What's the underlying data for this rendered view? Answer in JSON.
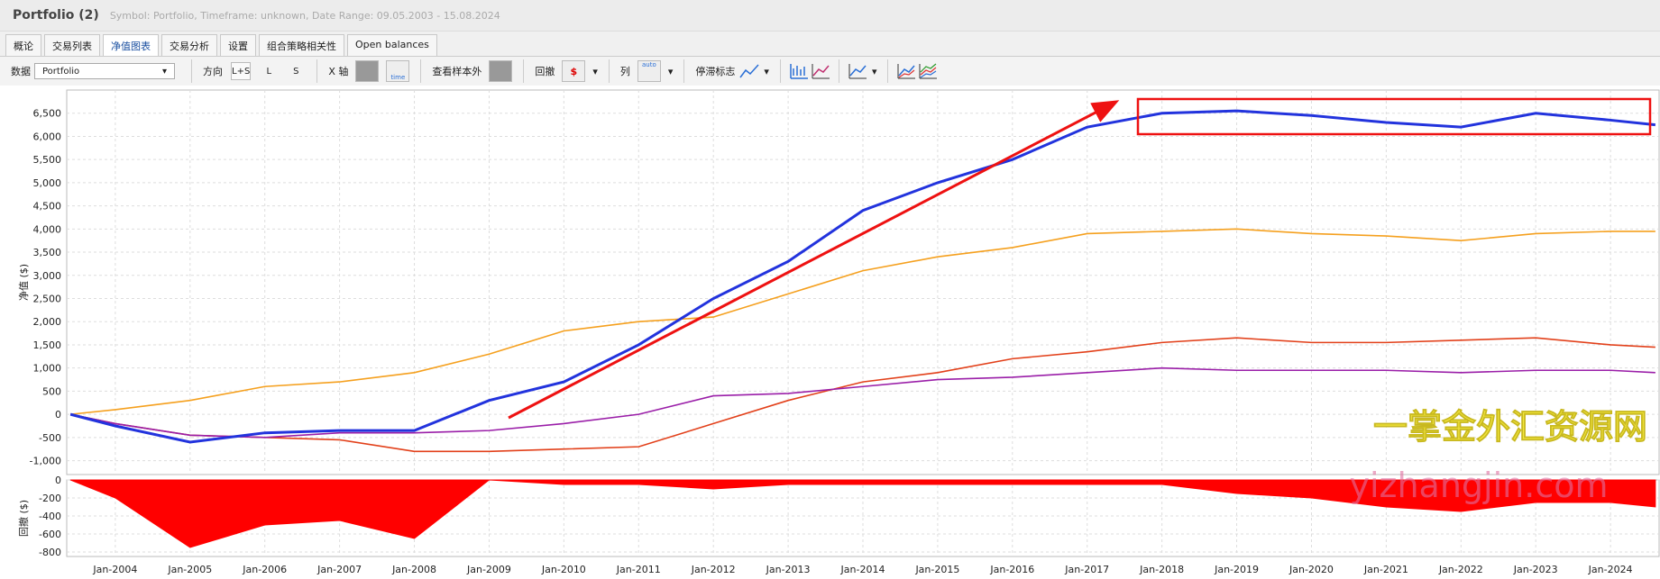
{
  "header": {
    "title": "Portfolio (2)",
    "subtitle": "Symbol: Portfolio, Timeframe: unknown, Date Range: 09.05.2003 - 15.08.2024"
  },
  "tabs": [
    "概论",
    "交易列表",
    "净值图表",
    "交易分析",
    "设置",
    "组合策略相关性",
    "Open balances"
  ],
  "toolbar": {
    "data_label": "数据",
    "data_select": "Portfolio",
    "direction_label": "方向",
    "direction_options": [
      "L+S",
      "L",
      "S"
    ],
    "x_axis_label": "X 轴",
    "x_axis_icon": "time",
    "out_of_sample_label": "查看样本外",
    "drawdown_label": "回撤",
    "columns_label": "列",
    "columns_icon": "auto",
    "stagnation_label": "停滞标志"
  },
  "watermark": [
    "一掌金外汇资源网",
    "yizhangjin.com"
  ],
  "chart_data": [
    {
      "type": "line",
      "ylabel": "净值 ($)",
      "x": [
        2003.4,
        2004,
        2005,
        2006,
        2007,
        2008,
        2009,
        2010,
        2011,
        2012,
        2013,
        2014,
        2015,
        2016,
        2017,
        2018,
        2019,
        2020,
        2021,
        2022,
        2023,
        2024,
        2024.6
      ],
      "xlim": [
        2003.35,
        2024.65
      ],
      "ylim": [
        -1300,
        7000
      ],
      "yticks": [
        {
          "value": -1000,
          "label": "-1,000"
        },
        -500,
        0,
        500,
        {
          "value": 1000,
          "label": "1,000"
        },
        {
          "value": 1500,
          "label": "1,500"
        },
        {
          "value": 2000,
          "label": "2,000"
        },
        {
          "value": 2500,
          "label": "2,500"
        },
        {
          "value": 3000,
          "label": "3,000"
        },
        {
          "value": 3500,
          "label": "3,500"
        },
        {
          "value": 4000,
          "label": "4,000"
        },
        {
          "value": 4500,
          "label": "4,500"
        },
        {
          "value": 5000,
          "label": "5,000"
        },
        {
          "value": 5500,
          "label": "5,500"
        },
        {
          "value": 6000,
          "label": "6,000"
        },
        {
          "value": 6500,
          "label": "6,500"
        }
      ],
      "grid": true,
      "series": [
        {
          "color": "#f5a01e",
          "values": [
            0,
            100,
            300,
            600,
            700,
            900,
            1300,
            1800,
            2000,
            2100,
            2600,
            3100,
            3400,
            3600,
            3900,
            3950,
            4000,
            3900,
            3850,
            3750,
            3900,
            3950,
            3950
          ]
        },
        {
          "color": "#e2401a",
          "values": [
            0,
            -200,
            -450,
            -500,
            -550,
            -800,
            -800,
            -750,
            -700,
            -200,
            300,
            700,
            900,
            1200,
            1350,
            1550,
            1650,
            1550,
            1550,
            1600,
            1650,
            1500,
            1450
          ]
        },
        {
          "color": "#9a1ea8",
          "values": [
            0,
            -200,
            -450,
            -500,
            -400,
            -400,
            -350,
            -200,
            0,
            400,
            450,
            600,
            750,
            800,
            900,
            1000,
            950,
            950,
            950,
            900,
            950,
            950,
            900
          ]
        },
        {
          "color": "#2233dd",
          "values": [
            0,
            -250,
            -600,
            -400,
            -350,
            -350,
            300,
            700,
            1500,
            2500,
            3300,
            4400,
            5000,
            5500,
            6200,
            6500,
            6550,
            6450,
            6300,
            6200,
            6500,
            6350,
            6250
          ]
        }
      ]
    },
    {
      "type": "area",
      "ylabel": "回撤 ($)",
      "color": "#ff0000",
      "x": [
        2003.4,
        2004,
        2005,
        2006,
        2007,
        2008,
        2009,
        2010,
        2011,
        2012,
        2013,
        2014,
        2015,
        2016,
        2017,
        2018,
        2019,
        2020,
        2021,
        2022,
        2023,
        2024,
        2024.6
      ],
      "values": [
        0,
        -200,
        -750,
        -500,
        -450,
        -650,
        0,
        -50,
        -50,
        -100,
        -50,
        -50,
        -50,
        -50,
        -50,
        -50,
        -150,
        -200,
        -300,
        -350,
        -250,
        -250,
        -300
      ],
      "xlim": [
        2003.35,
        2024.65
      ],
      "ylim": [
        -850,
        0
      ],
      "yticks": [
        -800,
        -600,
        -400,
        -200,
        0
      ],
      "xticks": [
        {
          "value": 2004,
          "label": "Jan-2004"
        },
        {
          "value": 2005,
          "label": "Jan-2005"
        },
        {
          "value": 2006,
          "label": "Jan-2006"
        },
        {
          "value": 2007,
          "label": "Jan-2007"
        },
        {
          "value": 2008,
          "label": "Jan-2008"
        },
        {
          "value": 2009,
          "label": "Jan-2009"
        },
        {
          "value": 2010,
          "label": "Jan-2010"
        },
        {
          "value": 2011,
          "label": "Jan-2011"
        },
        {
          "value": 2012,
          "label": "Jan-2012"
        },
        {
          "value": 2013,
          "label": "Jan-2013"
        },
        {
          "value": 2014,
          "label": "Jan-2014"
        },
        {
          "value": 2015,
          "label": "Jan-2015"
        },
        {
          "value": 2016,
          "label": "Jan-2016"
        },
        {
          "value": 2017,
          "label": "Jan-2017"
        },
        {
          "value": 2018,
          "label": "Jan-2018"
        },
        {
          "value": 2019,
          "label": "Jan-2019"
        },
        {
          "value": 2020,
          "label": "Jan-2020"
        },
        {
          "value": 2021,
          "label": "Jan-2021"
        },
        {
          "value": 2022,
          "label": "Jan-2022"
        },
        {
          "value": 2023,
          "label": "Jan-2023"
        },
        {
          "value": 2024,
          "label": "Jan-2024"
        }
      ],
      "grid": true
    }
  ]
}
